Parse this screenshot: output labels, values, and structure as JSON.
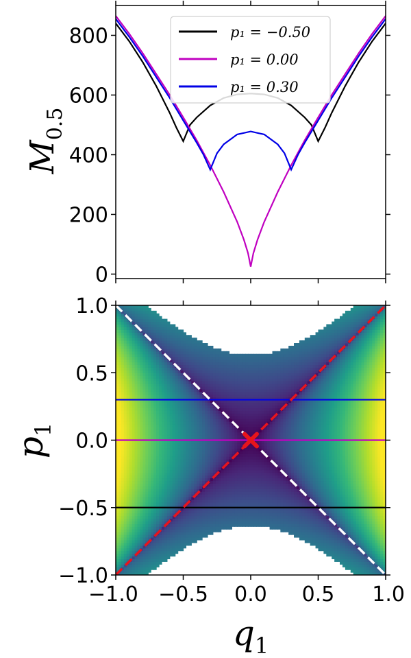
{
  "chart_data": [
    {
      "type": "line",
      "title": "",
      "ylabel": "M",
      "ylabel_sub": "0.5",
      "xlabel": "",
      "xlim": [
        -1.0,
        1.0
      ],
      "ylim": [
        -15,
        900
      ],
      "yticks": [
        0,
        200,
        400,
        600,
        800
      ],
      "ytick_labels": [
        "0",
        "200",
        "400",
        "600",
        "800"
      ],
      "xticks": [
        -1.0,
        -0.5,
        0.0,
        0.5,
        1.0
      ],
      "legend_position": "top-center",
      "series": [
        {
          "name": "p1 = -0.50",
          "legend_label": "p₁ = −0.50",
          "color": "#000000",
          "p1": -0.5,
          "x": [
            -1.0,
            -0.9,
            -0.8,
            -0.7,
            -0.6,
            -0.55,
            -0.5,
            -0.45,
            -0.4,
            -0.3,
            -0.2,
            -0.1,
            0.0,
            0.1,
            0.2,
            0.3,
            0.4,
            0.45,
            0.5,
            0.55,
            0.6,
            0.7,
            0.8,
            0.9,
            1.0
          ],
          "y": [
            840,
            780,
            710,
            630,
            540,
            490,
            445,
            500,
            525,
            565,
            590,
            602,
            605,
            602,
            590,
            565,
            525,
            500,
            445,
            490,
            540,
            630,
            710,
            780,
            840
          ]
        },
        {
          "name": "p1 = 0.00",
          "legend_label": "p₁ = 0.00",
          "color": "#c000c0",
          "p1": 0.0,
          "x": [
            -1.0,
            -0.9,
            -0.8,
            -0.7,
            -0.6,
            -0.5,
            -0.4,
            -0.3,
            -0.2,
            -0.1,
            -0.05,
            -0.02,
            0.0,
            0.02,
            0.05,
            0.1,
            0.2,
            0.3,
            0.4,
            0.5,
            0.6,
            0.7,
            0.8,
            0.9,
            1.0
          ],
          "y": [
            865,
            805,
            740,
            670,
            600,
            525,
            448,
            365,
            275,
            175,
            115,
            70,
            25,
            70,
            115,
            175,
            275,
            365,
            448,
            525,
            600,
            670,
            740,
            805,
            865
          ]
        },
        {
          "name": "p1 = 0.30",
          "legend_label": "p₁ = 0.30",
          "color": "#0000e6",
          "p1": 0.3,
          "x": [
            -1.0,
            -0.9,
            -0.8,
            -0.7,
            -0.6,
            -0.5,
            -0.4,
            -0.35,
            -0.3,
            -0.25,
            -0.2,
            -0.1,
            0.0,
            0.1,
            0.2,
            0.25,
            0.3,
            0.35,
            0.4,
            0.5,
            0.6,
            0.7,
            0.8,
            0.9,
            1.0
          ],
          "y": [
            855,
            795,
            730,
            660,
            590,
            515,
            440,
            400,
            350,
            405,
            435,
            468,
            478,
            468,
            435,
            405,
            350,
            400,
            440,
            515,
            590,
            660,
            730,
            795,
            855
          ]
        }
      ]
    },
    {
      "type": "heatmap",
      "title": "",
      "xlabel": "q",
      "xlabel_sub": "1",
      "ylabel": "p",
      "ylabel_sub": "1",
      "xlim": [
        -1.0,
        1.0
      ],
      "ylim": [
        -1.0,
        1.0
      ],
      "xticks": [
        -1.0,
        -0.5,
        0.0,
        0.5,
        1.0
      ],
      "xtick_labels": [
        "−1.0",
        "−0.5",
        "0.0",
        "0.5",
        "1.0"
      ],
      "yticks": [
        -1.0,
        -0.5,
        0.0,
        0.5,
        1.0
      ],
      "ytick_labels": [
        "−1.0",
        "−0.5",
        "0.0",
        "0.5",
        "1.0"
      ],
      "colormap": "viridis",
      "valid_region": "|p1| < sqrt(0.4 + q1^2)",
      "horizontal_lines": [
        {
          "p1": 0.3,
          "color": "#0000e6"
        },
        {
          "p1": 0.0,
          "color": "#c000c0"
        },
        {
          "p1": -0.5,
          "color": "#000000"
        }
      ],
      "dashed_lines": [
        {
          "name": "diagonal p1 = q1",
          "color": "#e8141c",
          "from": [
            -1.0,
            -1.0
          ],
          "to": [
            1.0,
            1.0
          ]
        },
        {
          "name": "anti-diagonal p1 = -q1",
          "color": "#ffffff",
          "from": [
            -1.0,
            1.0
          ],
          "to": [
            1.0,
            -1.0
          ]
        }
      ],
      "marker": {
        "q1": 0.0,
        "p1": 0.0,
        "symbol": "x",
        "color": "#e8141c"
      }
    }
  ]
}
